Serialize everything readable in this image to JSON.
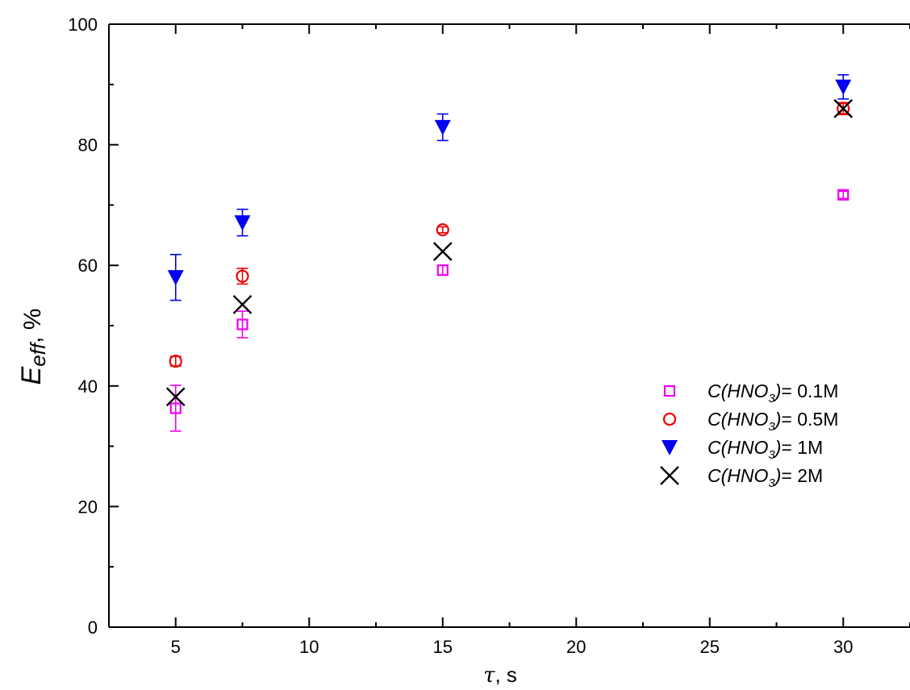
{
  "chart_data": {
    "type": "scatter",
    "xlabel": {
      "symbol": "τ",
      "unit": ", s"
    },
    "ylabel": {
      "symbol": "E",
      "subscript": "eff",
      "unit": ", %"
    },
    "xlim": [
      2.5,
      32.5
    ],
    "ylim": [
      0,
      100
    ],
    "x_ticks": [
      5,
      10,
      15,
      20,
      25,
      30
    ],
    "y_ticks": [
      0,
      20,
      40,
      60,
      80,
      100
    ],
    "x_tick_labels": [
      "5",
      "10",
      "15",
      "20",
      "25",
      "30"
    ],
    "y_tick_labels": [
      "0",
      "20",
      "40",
      "60",
      "80",
      "100"
    ],
    "grid": false,
    "legend_position": "bottom-right",
    "series": [
      {
        "name": "C(HNO3)= 0.1M",
        "name_parts": {
          "pre": "C(HNO",
          "sub": "3",
          "post": ")",
          "value": "= 0.1M"
        },
        "marker": "open-square",
        "color": "#ee00ee",
        "x": [
          5,
          7.5,
          15,
          30
        ],
        "y": [
          36.3,
          50.2,
          59.2,
          71.7
        ],
        "err": [
          3.8,
          2.2,
          0.8,
          0.6
        ]
      },
      {
        "name": "C(HNO3)= 0.5M",
        "name_parts": {
          "pre": "C(HNO",
          "sub": "3",
          "post": ")",
          "value": "= 0.5M"
        },
        "marker": "open-circle",
        "color": "#ee0000",
        "x": [
          5,
          7.5,
          15,
          30
        ],
        "y": [
          44.1,
          58.2,
          65.9,
          86.0
        ],
        "err": [
          0.8,
          1.3,
          0.5,
          1.0
        ]
      },
      {
        "name": "C(HNO3)= 1M",
        "name_parts": {
          "pre": "C(HNO",
          "sub": "3",
          "post": ")",
          "value": "= 1M"
        },
        "marker": "filled-down-triangle",
        "color": "#0000ee",
        "x": [
          5,
          7.5,
          15,
          30
        ],
        "y": [
          58.0,
          67.1,
          82.9,
          89.6
        ],
        "err": [
          3.8,
          2.2,
          2.2,
          2.0
        ]
      },
      {
        "name": "C(HNO3)= 2M",
        "name_parts": {
          "pre": "C(HNO",
          "sub": "3",
          "post": ")",
          "value": "= 2M"
        },
        "marker": "x-cross",
        "color": "#000000",
        "x": [
          5,
          7.5,
          15,
          30
        ],
        "y": [
          38.2,
          53.5,
          62.3,
          86.0
        ],
        "err": [
          0,
          0,
          0,
          0
        ]
      }
    ]
  }
}
